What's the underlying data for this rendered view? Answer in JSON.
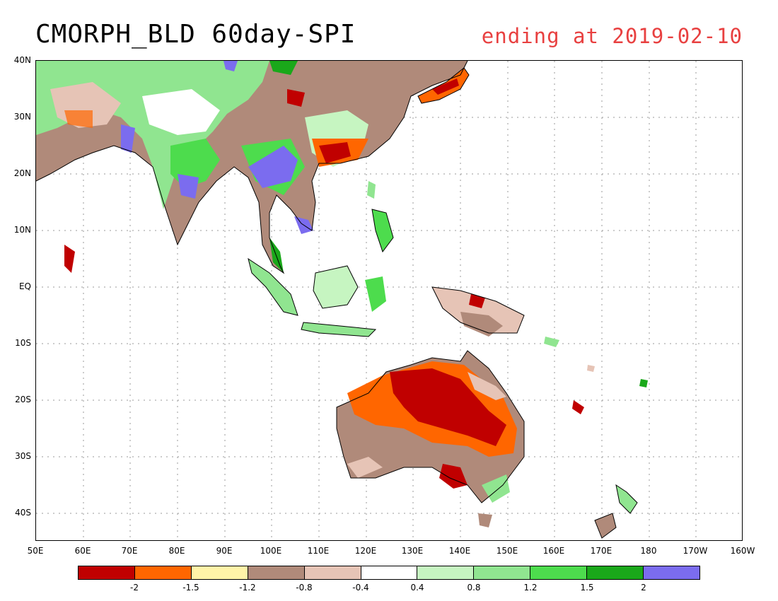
{
  "title": "CMORPH_BLD 60day-SPI",
  "subtitle": "ending at 2019-02-10",
  "lat_labels": [
    "40N",
    "30N",
    "20N",
    "10N",
    "EQ",
    "10S",
    "20S",
    "30S",
    "40S"
  ],
  "lon_labels": [
    "50E",
    "60E",
    "70E",
    "80E",
    "90E",
    "100E",
    "110E",
    "120E",
    "130E",
    "140E",
    "150E",
    "160E",
    "170E",
    "180",
    "170W",
    "160W"
  ],
  "colorbar": {
    "colors": [
      "#c00000",
      "#ff6600",
      "#fff4a8",
      "#b08a7a",
      "#e6c4b6",
      "#ffffff",
      "#c6f5c1",
      "#90e590",
      "#4ddc4d",
      "#1aa81a",
      "#7b6cef"
    ],
    "tick_labels": [
      "-2",
      "-1.5",
      "-1.2",
      "-0.8",
      "-0.4",
      "0.4",
      "0.8",
      "1.2",
      "1.5",
      "2"
    ]
  },
  "extent": {
    "lon": [
      50,
      200
    ],
    "lat": [
      -45,
      40
    ]
  }
}
